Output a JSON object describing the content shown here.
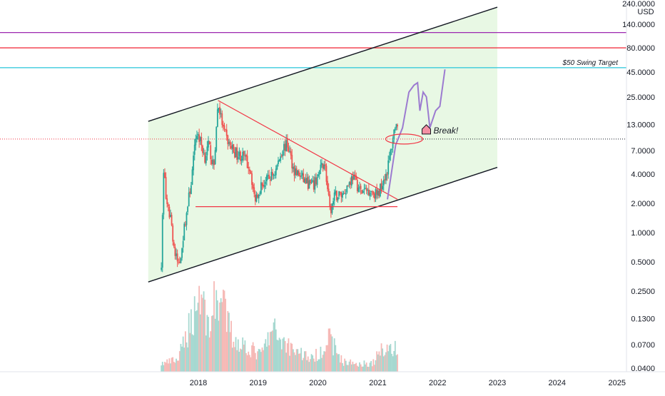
{
  "chart_data": {
    "type": "candlestick",
    "y_scale": "log",
    "currency": "USD",
    "ylim": [
      0.04,
      240
    ],
    "xlim": [
      "2017-01-01",
      "2025-05-01"
    ],
    "y_ticks": [
      {
        "value": 240,
        "label": "240.0000"
      },
      {
        "value": 140,
        "label": "140.0000"
      },
      {
        "value": 80,
        "label": "80.0000"
      },
      {
        "value": 45,
        "label": "45.0000"
      },
      {
        "value": 25,
        "label": "25.0000"
      },
      {
        "value": 13,
        "label": "13.0000"
      },
      {
        "value": 7,
        "label": "7.0000"
      },
      {
        "value": 4,
        "label": "4.0000"
      },
      {
        "value": 2,
        "label": "2.0000"
      },
      {
        "value": 1,
        "label": "1.0000"
      },
      {
        "value": 0.5,
        "label": "0.5000"
      },
      {
        "value": 0.25,
        "label": "0.2500"
      },
      {
        "value": 0.13,
        "label": "0.1300"
      },
      {
        "value": 0.07,
        "label": "0.0700"
      },
      {
        "value": 0.04,
        "label": "0.0400"
      }
    ],
    "x_ticks": [
      "2018",
      "2019",
      "2020",
      "2021",
      "2022",
      "2023",
      "2024",
      "2025"
    ],
    "price_path": [
      [
        "2017-05-20",
        0.5
      ],
      [
        "2017-06-05",
        5.5
      ],
      [
        "2017-06-20",
        1.8
      ],
      [
        "2017-07-15",
        1.5
      ],
      [
        "2017-08-10",
        0.6
      ],
      [
        "2017-09-05",
        0.45
      ],
      [
        "2017-10-10",
        1.2
      ],
      [
        "2017-11-20",
        3.5
      ],
      [
        "2017-12-20",
        11
      ],
      [
        "2018-01-10",
        9
      ],
      [
        "2018-02-10",
        6
      ],
      [
        "2018-03-05",
        8
      ],
      [
        "2018-04-05",
        4.5
      ],
      [
        "2018-05-01",
        22
      ],
      [
        "2018-06-05",
        11
      ],
      [
        "2018-07-10",
        8
      ],
      [
        "2018-08-20",
        6.5
      ],
      [
        "2018-10-05",
        6
      ],
      [
        "2018-11-15",
        4.5
      ],
      [
        "2018-12-10",
        2.2
      ],
      [
        "2019-01-15",
        3
      ],
      [
        "2019-03-01",
        3.5
      ],
      [
        "2019-04-15",
        4.2
      ],
      [
        "2019-06-01",
        7.5
      ],
      [
        "2019-07-01",
        8
      ],
      [
        "2019-08-05",
        4.5
      ],
      [
        "2019-09-15",
        3.8
      ],
      [
        "2019-11-01",
        3.2
      ],
      [
        "2019-12-05",
        3
      ],
      [
        "2020-02-10",
        5.5
      ],
      [
        "2020-03-15",
        1.6
      ],
      [
        "2020-04-15",
        2.4
      ],
      [
        "2020-06-01",
        2.5
      ],
      [
        "2020-08-01",
        3.8
      ],
      [
        "2020-09-20",
        2.6
      ],
      [
        "2020-11-15",
        2.8
      ],
      [
        "2021-01-01",
        2.4
      ],
      [
        "2021-02-01",
        3.5
      ],
      [
        "2021-02-25",
        4.2
      ],
      [
        "2021-03-25",
        7.5
      ],
      [
        "2021-04-20",
        14
      ],
      [
        "2021-05-05",
        10
      ]
    ],
    "volume": [
      [
        "2017-06-01",
        0.1
      ],
      [
        "2017-09-01",
        0.15
      ],
      [
        "2017-12-01",
        0.7
      ],
      [
        "2018-01-15",
        1.0
      ],
      [
        "2018-03-01",
        0.55
      ],
      [
        "2018-05-01",
        0.95
      ],
      [
        "2018-08-01",
        0.4
      ],
      [
        "2018-11-01",
        0.3
      ],
      [
        "2019-01-15",
        0.2
      ],
      [
        "2019-04-01",
        0.5
      ],
      [
        "2019-06-15",
        0.35
      ],
      [
        "2019-09-01",
        0.25
      ],
      [
        "2019-12-01",
        0.15
      ],
      [
        "2020-03-15",
        0.4
      ],
      [
        "2020-06-01",
        0.12
      ],
      [
        "2020-09-01",
        0.1
      ],
      [
        "2020-12-01",
        0.1
      ],
      [
        "2021-02-01",
        0.3
      ],
      [
        "2021-04-01",
        0.28
      ],
      [
        "2021-05-10",
        0.25
      ]
    ],
    "projection": [
      [
        "2021-03-01",
        2.2
      ],
      [
        "2021-04-20",
        8
      ],
      [
        "2021-06-01",
        12
      ],
      [
        "2021-07-10",
        28
      ],
      [
        "2021-08-10",
        33
      ],
      [
        "2021-09-01",
        35
      ],
      [
        "2021-09-15",
        18
      ],
      [
        "2021-10-05",
        28
      ],
      [
        "2021-10-25",
        25
      ],
      [
        "2021-11-15",
        12
      ],
      [
        "2021-12-20",
        18
      ],
      [
        "2022-01-15",
        20
      ],
      [
        "2022-02-15",
        48
      ]
    ],
    "channel_upper": [
      [
        "2017-03-01",
        14
      ],
      [
        "2023-01-01",
        210
      ]
    ],
    "channel_lower": [
      [
        "2017-03-01",
        0.31
      ],
      [
        "2023-01-01",
        4.7
      ]
    ],
    "triangle_upper": [
      [
        "2018-05-01",
        23
      ],
      [
        "2021-05-01",
        2.2
      ]
    ],
    "triangle_lower": [
      [
        "2017-12-15",
        1.85
      ],
      [
        "2021-05-01",
        1.85
      ]
    ],
    "horizontal_levels": [
      {
        "value": 115,
        "color": "#9c27b0"
      },
      {
        "value": 80,
        "color": "#f23645"
      },
      {
        "value": 50,
        "color": "#26c6da",
        "label": "$50 Swing Target"
      },
      {
        "value": 9.2,
        "color": "#f23645",
        "style": "dotted"
      },
      {
        "value": 9.2,
        "color": "#131722",
        "style": "dotted"
      }
    ],
    "break_annotation": {
      "label": "Break!",
      "date": "2021-04-20",
      "value": 9.2
    },
    "colors": {
      "up": "#26a69a",
      "down": "#ef5350",
      "channel_fill": "#e8f8e4",
      "volume_up": "#a6d8d0",
      "volume_down": "#f6b9b6",
      "projection": "#9c7bd0",
      "channel": "#131722",
      "triangle": "#f23645"
    }
  }
}
